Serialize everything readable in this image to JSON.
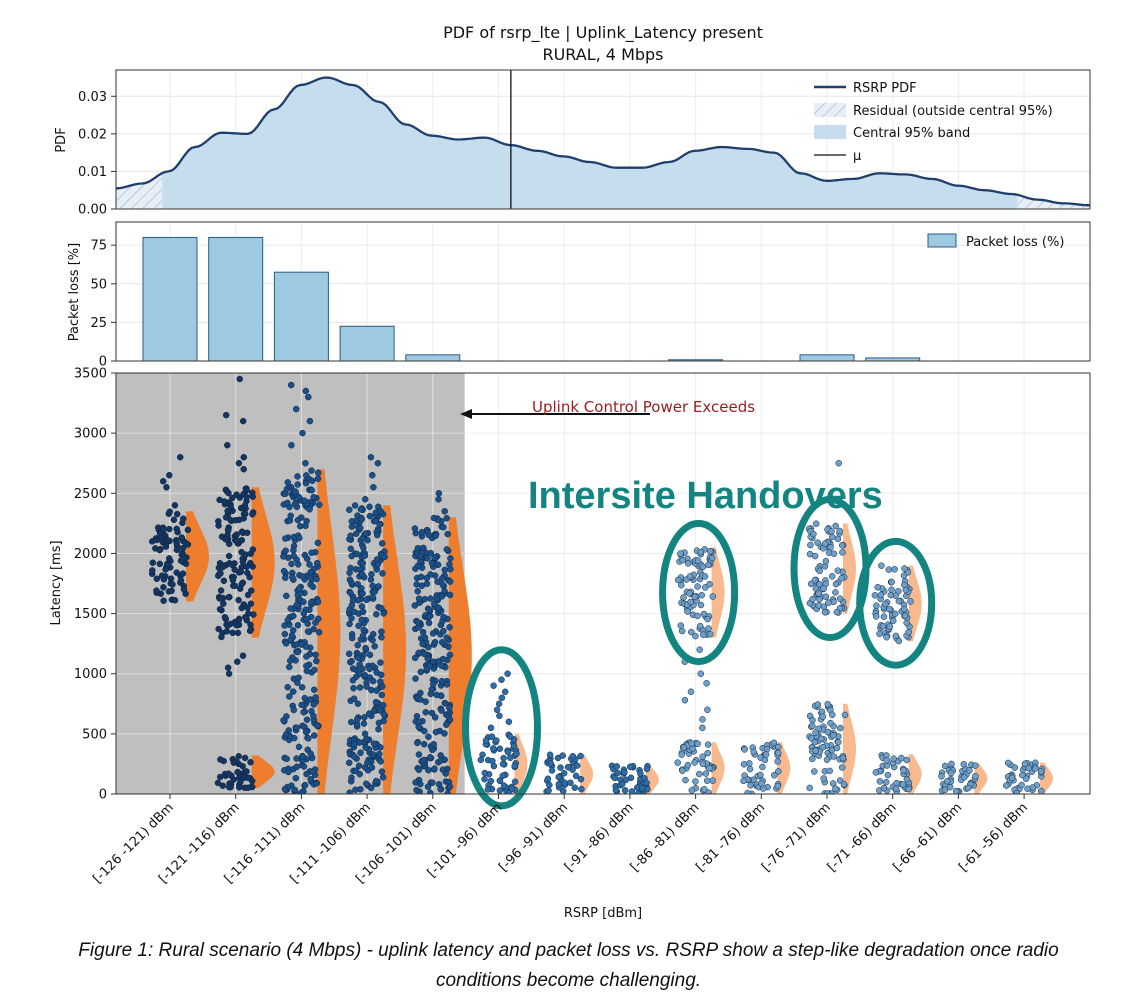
{
  "figure": {
    "title_line1": "PDF of rsrp_lte | Uplink_Latency present",
    "title_line2": "RURAL, 4 Mbps",
    "caption_line1": "Figure 1: Rural scenario (4 Mbps) - uplink latency and packet loss vs. RSRP show a step-like degradation once radio",
    "caption_line2": "conditions become challenging."
  },
  "chart_data": [
    {
      "type": "area",
      "ylabel": "PDF",
      "ylim": [
        0,
        0.037
      ],
      "yticks": [
        "0.00",
        "0.01",
        "0.02",
        "0.03"
      ],
      "legend": {
        "placement": "top-right",
        "entries": [
          "RSRP PDF",
          "Residual (outside central 95%)",
          "Central 95% band",
          "μ"
        ]
      },
      "x_unit": "RSRP dBm",
      "x_range": [
        -126,
        -52
      ],
      "central_band": [
        -122.5,
        -57.5
      ],
      "mu": -96.0,
      "series": [
        {
          "name": "RSRP PDF",
          "x": [
            -126,
            -124,
            -122,
            -120,
            -118,
            -116,
            -114,
            -112,
            -110,
            -108,
            -106,
            -104,
            -102,
            -100,
            -98,
            -96,
            -94,
            -92,
            -90,
            -88,
            -86,
            -84,
            -82,
            -80,
            -78,
            -76,
            -74,
            -72,
            -70,
            -68,
            -66,
            -64,
            -62,
            -60,
            -58,
            -56,
            -54,
            -52
          ],
          "y": [
            0.0055,
            0.0068,
            0.01,
            0.0165,
            0.0203,
            0.02,
            0.0265,
            0.033,
            0.035,
            0.033,
            0.0285,
            0.0225,
            0.0195,
            0.0185,
            0.019,
            0.017,
            0.0155,
            0.014,
            0.0125,
            0.011,
            0.011,
            0.0125,
            0.0155,
            0.0165,
            0.016,
            0.015,
            0.0095,
            0.0075,
            0.008,
            0.0095,
            0.0092,
            0.008,
            0.0062,
            0.005,
            0.004,
            0.0025,
            0.0015,
            0.001
          ]
        }
      ]
    },
    {
      "type": "bar",
      "ylabel": "Packet loss [%]",
      "ylim": [
        0,
        90
      ],
      "yticks": [
        "0",
        "25",
        "50",
        "75"
      ],
      "legend": {
        "placement": "top-right",
        "entries": [
          "Packet loss (%)"
        ]
      },
      "categories": [
        "[-126 -121) dBm",
        "[-121 -116) dBm",
        "[-116 -111) dBm",
        "[-111 -106) dBm",
        "[-106 -101) dBm",
        "[-101 -96) dBm",
        "[-96 -91) dBm",
        "[-91 -86) dBm",
        "[-86 -81) dBm",
        "[-81 -76) dBm",
        "[-76 -71) dBm",
        "[-71 -66) dBm",
        "[-66 -61) dBm",
        "[-61 -56) dBm"
      ],
      "series": [
        {
          "name": "Packet loss (%)",
          "values": [
            80,
            80,
            57.5,
            22.5,
            4,
            0,
            0,
            0,
            0.8,
            0,
            4,
            2,
            0,
            0
          ]
        }
      ]
    },
    {
      "type": "scatter",
      "xlabel": "RSRP [dBm]",
      "ylabel": "Latency [ms]",
      "ylim": [
        0,
        3500
      ],
      "yticks": [
        "0",
        "500",
        "1000",
        "1500",
        "2000",
        "2500",
        "3000",
        "3500"
      ],
      "categories": [
        "[-126 -121) dBm",
        "[-121 -116) dBm",
        "[-116 -111) dBm",
        "[-111 -106) dBm",
        "[-106 -101) dBm",
        "[-101 -96) dBm",
        "[-96 -91) dBm",
        "[-91 -86) dBm",
        "[-86 -81) dBm",
        "[-81 -76) dBm",
        "[-76 -71) dBm",
        "[-71 -66) dBm",
        "[-66 -61) dBm",
        "[-61 -56) dBm"
      ],
      "shaded_region": {
        "from_category": 0,
        "to_category": 4,
        "color": "#bfbfbf"
      },
      "annotation_arrow": {
        "text": "Uplink Control Power Exceeds",
        "color": "#9b1c1c",
        "points_to_category_edge": 4
      },
      "callout_text": "Intersite Handovers",
      "callout_color": "#138480",
      "callout_ellipses_on_categories": [
        5,
        8,
        10,
        11
      ],
      "distribution_ranges": [
        {
          "clusters": [
            [
              1600,
              2350
            ]
          ],
          "outliers": [
            2400,
            2550,
            2600,
            2650,
            2800
          ]
        },
        {
          "clusters": [
            [
              1300,
              2550
            ],
            [
              50,
              320
            ]
          ],
          "outliers": [
            1000,
            1050,
            1100,
            1150,
            2700,
            2750,
            2800,
            2900,
            3100,
            3150,
            3450
          ]
        },
        {
          "clusters": [
            [
              0,
              2700
            ]
          ],
          "outliers": [
            2750,
            2900,
            3000,
            3100,
            3200,
            3300,
            3350,
            3400
          ]
        },
        {
          "clusters": [
            [
              0,
              2400
            ]
          ],
          "outliers": [
            2450,
            2550,
            2650,
            2750,
            2800
          ]
        },
        {
          "clusters": [
            [
              0,
              2300
            ]
          ],
          "outliers": [
            2350,
            2450,
            2500
          ]
        },
        {
          "clusters": [
            [
              0,
              500
            ]
          ],
          "outliers": [
            550,
            600,
            650,
            700,
            750,
            800,
            850,
            900,
            950,
            1000
          ]
        },
        {
          "clusters": [
            [
              0,
              330
            ]
          ],
          "outliers": []
        },
        {
          "clusters": [
            [
              0,
              240
            ]
          ],
          "outliers": []
        },
        {
          "clusters": [
            [
              0,
              430
            ],
            [
              1300,
              2050
            ]
          ],
          "outliers": [
            550,
            620,
            700,
            780,
            850,
            920,
            1000,
            1100,
            1200
          ]
        },
        {
          "clusters": [
            [
              0,
              430
            ]
          ],
          "outliers": []
        },
        {
          "clusters": [
            [
              0,
              750
            ],
            [
              1500,
              2250
            ]
          ],
          "outliers": [
            2750
          ]
        },
        {
          "clusters": [
            [
              0,
              330
            ],
            [
              1270,
              1900
            ]
          ],
          "outliers": []
        },
        {
          "clusters": [
            [
              0,
              260
            ]
          ],
          "outliers": []
        },
        {
          "clusters": [
            [
              0,
              260
            ]
          ],
          "outliers": []
        }
      ],
      "point_colors": [
        "#14355f",
        "#1a4f87",
        "#2e6ca6",
        "#6f9fc6"
      ],
      "violin_colors": [
        "#ee7d2d",
        "#f7b98d"
      ]
    }
  ]
}
